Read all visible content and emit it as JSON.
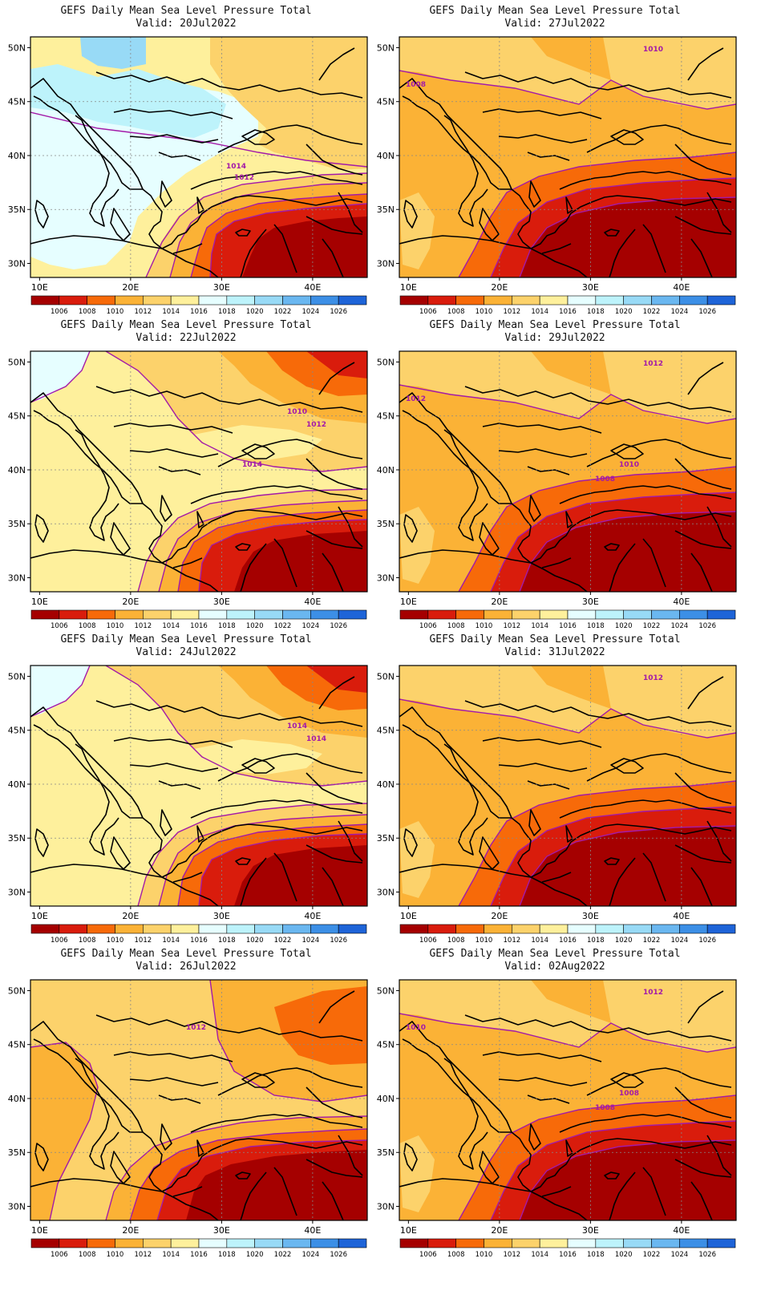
{
  "title": "GEFS Daily Mean Sea Level Pressure Total",
  "panels": [
    {
      "valid": "Valid: 20Jul2022",
      "scenario": 0,
      "contour_labels": [
        "1014",
        "1012"
      ]
    },
    {
      "valid": "Valid: 27Jul2022",
      "scenario": 3,
      "contour_labels": [
        "1010",
        "1008"
      ]
    },
    {
      "valid": "Valid: 22Jul2022",
      "scenario": 1,
      "contour_labels": [
        "1010",
        "1012",
        "1014"
      ]
    },
    {
      "valid": "Valid: 29Jul2022",
      "scenario": 3,
      "contour_labels": [
        "1012",
        "1012",
        "1010",
        "1008"
      ]
    },
    {
      "valid": "Valid: 24Jul2022",
      "scenario": 1,
      "contour_labels": [
        "1014",
        "1014"
      ]
    },
    {
      "valid": "Valid: 31Jul2022",
      "scenario": 3,
      "contour_labels": [
        "1012"
      ]
    },
    {
      "valid": "Valid: 26Jul2022",
      "scenario": 2,
      "contour_labels": [
        "1012"
      ]
    },
    {
      "valid": "Valid: 02Aug2022",
      "scenario": 3,
      "contour_labels": [
        "1012",
        "1010",
        "1008",
        "1008"
      ]
    }
  ],
  "lat_labels": [
    "50N",
    "45N",
    "40N",
    "35N",
    "30N"
  ],
  "lon_labels": [
    "10E",
    "20E",
    "30E",
    "40E"
  ],
  "colorbar": {
    "labels": [
      "1006",
      "1008",
      "1010",
      "1012",
      "1014",
      "1016",
      "1018",
      "1020",
      "1022",
      "1024",
      "1026"
    ],
    "colors": [
      "#a50000",
      "#d91c0c",
      "#f76a09",
      "#fbb236",
      "#fcd26b",
      "#fef09c",
      "#e6feff",
      "#bdf3fb",
      "#98daf6",
      "#6ab7f0",
      "#3c8fe6",
      "#1e64d8"
    ]
  },
  "contour_color": "#a31aa8"
}
